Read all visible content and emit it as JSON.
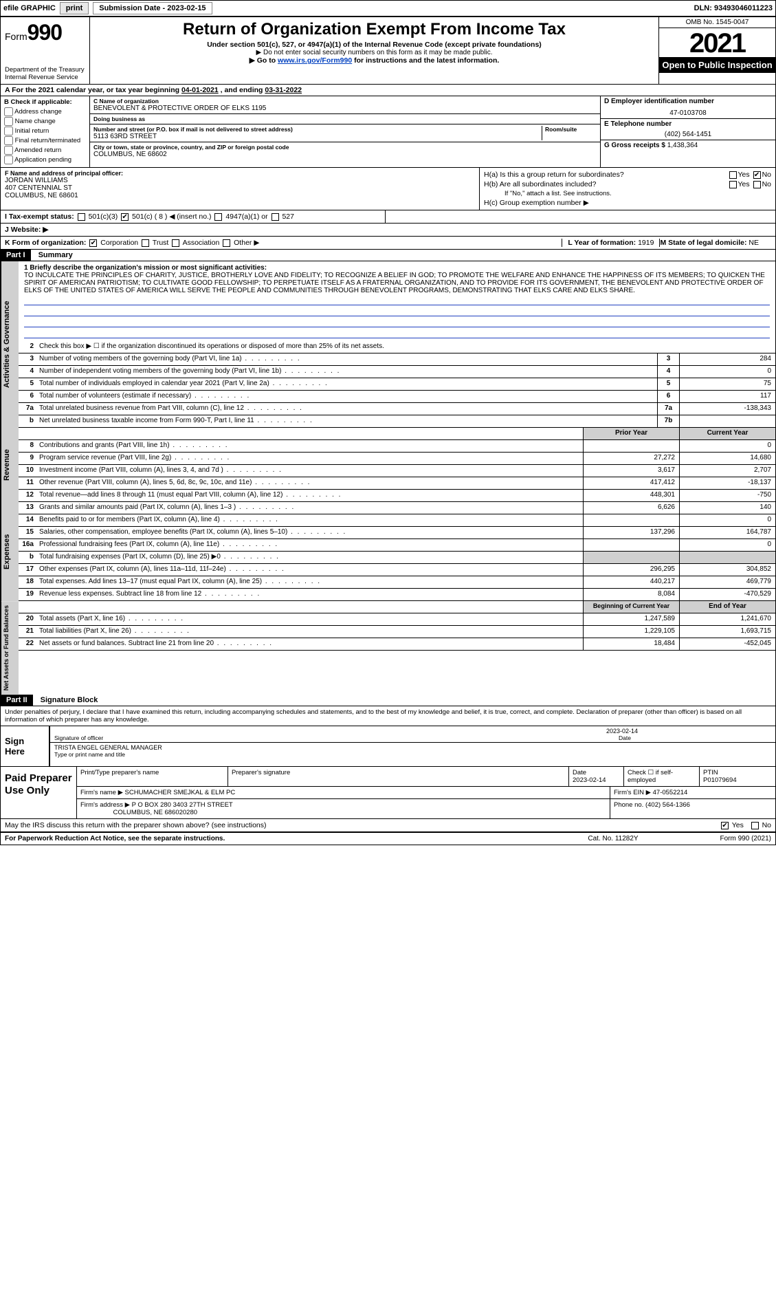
{
  "topbar": {
    "efile": "efile GRAPHIC",
    "print": "print",
    "sub_lbl": "Submission Date - ",
    "sub_date": "2023-02-15",
    "dln_lbl": "DLN: ",
    "dln": "93493046011223"
  },
  "hdr": {
    "form_word": "Form",
    "form_num": "990",
    "dept": "Department of the Treasury",
    "irs": "Internal Revenue Service",
    "title": "Return of Organization Exempt From Income Tax",
    "sub1": "Under section 501(c), 527, or 4947(a)(1) of the Internal Revenue Code (except private foundations)",
    "sub2": "▶ Do not enter social security numbers on this form as it may be made public.",
    "sub3_pre": "▶ Go to ",
    "sub3_link": "www.irs.gov/Form990",
    "sub3_post": " for instructions and the latest information.",
    "omb": "OMB No. 1545-0047",
    "year": "2021",
    "open": "Open to Public Inspection"
  },
  "lineA": {
    "pre": "A   For the 2021 calendar year, or tax year beginning ",
    "begin": "04-01-2021",
    "mid": " , and ending ",
    "end": "03-31-2022"
  },
  "colB": {
    "hdr": "B Check if applicable:",
    "opts": [
      "Address change",
      "Name change",
      "Initial return",
      "Final return/terminated",
      "Amended return",
      "Application pending"
    ]
  },
  "colC": {
    "name_lbl": "C Name of organization",
    "name": "BENEVOLENT & PROTECTIVE ORDER OF ELKS 1195",
    "dba_lbl": "Doing business as",
    "dba": "",
    "addr_lbl": "Number and street (or P.O. box if mail is not delivered to street address)",
    "room_lbl": "Room/suite",
    "addr": "5113 63RD STREET",
    "city_lbl": "City or town, state or province, country, and ZIP or foreign postal code",
    "city": "COLUMBUS, NE  68602"
  },
  "colD": {
    "ein_lbl": "D Employer identification number",
    "ein": "47-0103708",
    "tel_lbl": "E Telephone number",
    "tel": "(402) 564-1451",
    "gross_lbl": "G Gross receipts $ ",
    "gross": "1,438,364"
  },
  "rowF": {
    "lbl": "F  Name and address of principal officer:",
    "name": "JORDAN WILLIAMS",
    "addr1": "407 CENTENNIAL ST",
    "addr2": "COLUMBUS, NE  68601"
  },
  "rowH": {
    "a": "H(a)  Is this a group return for subordinates?",
    "b": "H(b)  Are all subordinates included?",
    "b_note": "If \"No,\" attach a list. See instructions.",
    "c": "H(c)  Group exemption number ▶"
  },
  "rowI": {
    "lbl": "I   Tax-exempt status:",
    "c3": "501(c)(3)",
    "c_pre": "501(c) ( ",
    "c_num": "8",
    "c_post": " ) ◀ (insert no.)",
    "a1": "4947(a)(1) or",
    "527": "527"
  },
  "rowJ": {
    "lbl": "J   Website: ▶",
    "val": ""
  },
  "rowK": {
    "lbl": "K Form of organization:",
    "opts": [
      "Corporation",
      "Trust",
      "Association",
      "Other ▶"
    ],
    "checked": 0,
    "L_lbl": "L Year of formation: ",
    "L_val": "1919",
    "M_lbl": "M State of legal domicile: ",
    "M_val": "NE"
  },
  "part1": {
    "hdr": "Part I",
    "title": "Summary"
  },
  "mission": {
    "q": "1   Briefly describe the organization's mission or most significant activities:",
    "text": "TO INCULCATE THE PRINCIPLES OF CHARITY, JUSTICE, BROTHERLY LOVE AND FIDELITY; TO RECOGNIZE A BELIEF IN GOD; TO PROMOTE THE WELFARE AND ENHANCE THE HAPPINESS OF ITS MEMBERS; TO QUICKEN THE SPIRIT OF AMERICAN PATRIOTISM; TO CULTIVATE GOOD FELLOWSHIP; TO PERPETUATE ITSELF AS A FRATERNAL ORGANIZATION, AND TO PROVIDE FOR ITS GOVERNMENT, THE BENEVOLENT AND PROTECTIVE ORDER OF ELKS OF THE UNITED STATES OF AMERICA WILL SERVE THE PEOPLE AND COMMUNITIES THROUGH BENEVOLENT PROGRAMS, DEMONSTRATING THAT ELKS CARE AND ELKS SHARE."
  },
  "gov": {
    "vtab": "Activities & Governance",
    "l2": "Check this box ▶ ☐ if the organization discontinued its operations or disposed of more than 25% of its net assets.",
    "rows": [
      {
        "n": "3",
        "t": "Number of voting members of the governing body (Part VI, line 1a)",
        "box": "3",
        "val": "284"
      },
      {
        "n": "4",
        "t": "Number of independent voting members of the governing body (Part VI, line 1b)",
        "box": "4",
        "val": "0"
      },
      {
        "n": "5",
        "t": "Total number of individuals employed in calendar year 2021 (Part V, line 2a)",
        "box": "5",
        "val": "75"
      },
      {
        "n": "6",
        "t": "Total number of volunteers (estimate if necessary)",
        "box": "6",
        "val": "117"
      },
      {
        "n": "7a",
        "t": "Total unrelated business revenue from Part VIII, column (C), line 12",
        "box": "7a",
        "val": "-138,343"
      },
      {
        "n": "b",
        "t": "Net unrelated business taxable income from Form 990-T, Part I, line 11",
        "box": "7b",
        "val": ""
      }
    ]
  },
  "rev": {
    "vtab": "Revenue",
    "hdr_prior": "Prior Year",
    "hdr_curr": "Current Year",
    "rows": [
      {
        "n": "8",
        "t": "Contributions and grants (Part VIII, line 1h)",
        "p": "",
        "c": "0"
      },
      {
        "n": "9",
        "t": "Program service revenue (Part VIII, line 2g)",
        "p": "27,272",
        "c": "14,680"
      },
      {
        "n": "10",
        "t": "Investment income (Part VIII, column (A), lines 3, 4, and 7d )",
        "p": "3,617",
        "c": "2,707"
      },
      {
        "n": "11",
        "t": "Other revenue (Part VIII, column (A), lines 5, 6d, 8c, 9c, 10c, and 11e)",
        "p": "417,412",
        "c": "-18,137"
      },
      {
        "n": "12",
        "t": "Total revenue—add lines 8 through 11 (must equal Part VIII, column (A), line 12)",
        "p": "448,301",
        "c": "-750"
      }
    ]
  },
  "exp": {
    "vtab": "Expenses",
    "rows": [
      {
        "n": "13",
        "t": "Grants and similar amounts paid (Part IX, column (A), lines 1–3 )",
        "p": "6,626",
        "c": "140"
      },
      {
        "n": "14",
        "t": "Benefits paid to or for members (Part IX, column (A), line 4)",
        "p": "",
        "c": "0"
      },
      {
        "n": "15",
        "t": "Salaries, other compensation, employee benefits (Part IX, column (A), lines 5–10)",
        "p": "137,296",
        "c": "164,787"
      },
      {
        "n": "16a",
        "t": "Professional fundraising fees (Part IX, column (A), line 11e)",
        "p": "",
        "c": "0"
      },
      {
        "n": "b",
        "t": "Total fundraising expenses (Part IX, column (D), line 25) ▶0",
        "p": "shade",
        "c": "shade"
      },
      {
        "n": "17",
        "t": "Other expenses (Part IX, column (A), lines 11a–11d, 11f–24e)",
        "p": "296,295",
        "c": "304,852"
      },
      {
        "n": "18",
        "t": "Total expenses. Add lines 13–17 (must equal Part IX, column (A), line 25)",
        "p": "440,217",
        "c": "469,779"
      },
      {
        "n": "19",
        "t": "Revenue less expenses. Subtract line 18 from line 12",
        "p": "8,084",
        "c": "-470,529"
      }
    ]
  },
  "net": {
    "vtab": "Net Assets or Fund Balances",
    "hdr_beg": "Beginning of Current Year",
    "hdr_end": "End of Year",
    "rows": [
      {
        "n": "20",
        "t": "Total assets (Part X, line 16)",
        "p": "1,247,589",
        "c": "1,241,670"
      },
      {
        "n": "21",
        "t": "Total liabilities (Part X, line 26)",
        "p": "1,229,105",
        "c": "1,693,715"
      },
      {
        "n": "22",
        "t": "Net assets or fund balances. Subtract line 21 from line 20",
        "p": "18,484",
        "c": "-452,045"
      }
    ]
  },
  "part2": {
    "hdr": "Part II",
    "title": "Signature Block"
  },
  "penalties": "Under penalties of perjury, I declare that I have examined this return, including accompanying schedules and statements, and to the best of my knowledge and belief, it is true, correct, and complete. Declaration of preparer (other than officer) is based on all information of which preparer has any knowledge.",
  "sign": {
    "lbl": "Sign Here",
    "sig_cap": "Signature of officer",
    "date_cap": "Date",
    "date": "2023-02-14",
    "name": "TRISTA ENGEL  GENERAL MANAGER",
    "name_cap": "Type or print name and title"
  },
  "paid": {
    "lbl": "Paid Preparer Use Only",
    "r1": {
      "c1": "Print/Type preparer's name",
      "c2": "Preparer's signature",
      "c3_lbl": "Date",
      "c3": "2023-02-14",
      "c4": "Check ☐ if self-employed",
      "c5_lbl": "PTIN",
      "c5": "P01079694"
    },
    "r2": {
      "lbl": "Firm's name    ▶",
      "val": "SCHUMACHER SMEJKAL & ELM PC",
      "ein_lbl": "Firm's EIN ▶",
      "ein": "47-0552214"
    },
    "r3": {
      "lbl": "Firm's address ▶",
      "val": "P O BOX 280 3403 27TH STREET",
      "city": "COLUMBUS, NE  686020280",
      "ph_lbl": "Phone no.",
      "ph": "(402) 564-1366"
    }
  },
  "discuss": {
    "q": "May the IRS discuss this return with the preparer shown above? (see instructions)",
    "yes": "Yes",
    "no": "No"
  },
  "footer": {
    "l": "For Paperwork Reduction Act Notice, see the separate instructions.",
    "m": "Cat. No. 11282Y",
    "r": "Form 990 (2021)"
  }
}
